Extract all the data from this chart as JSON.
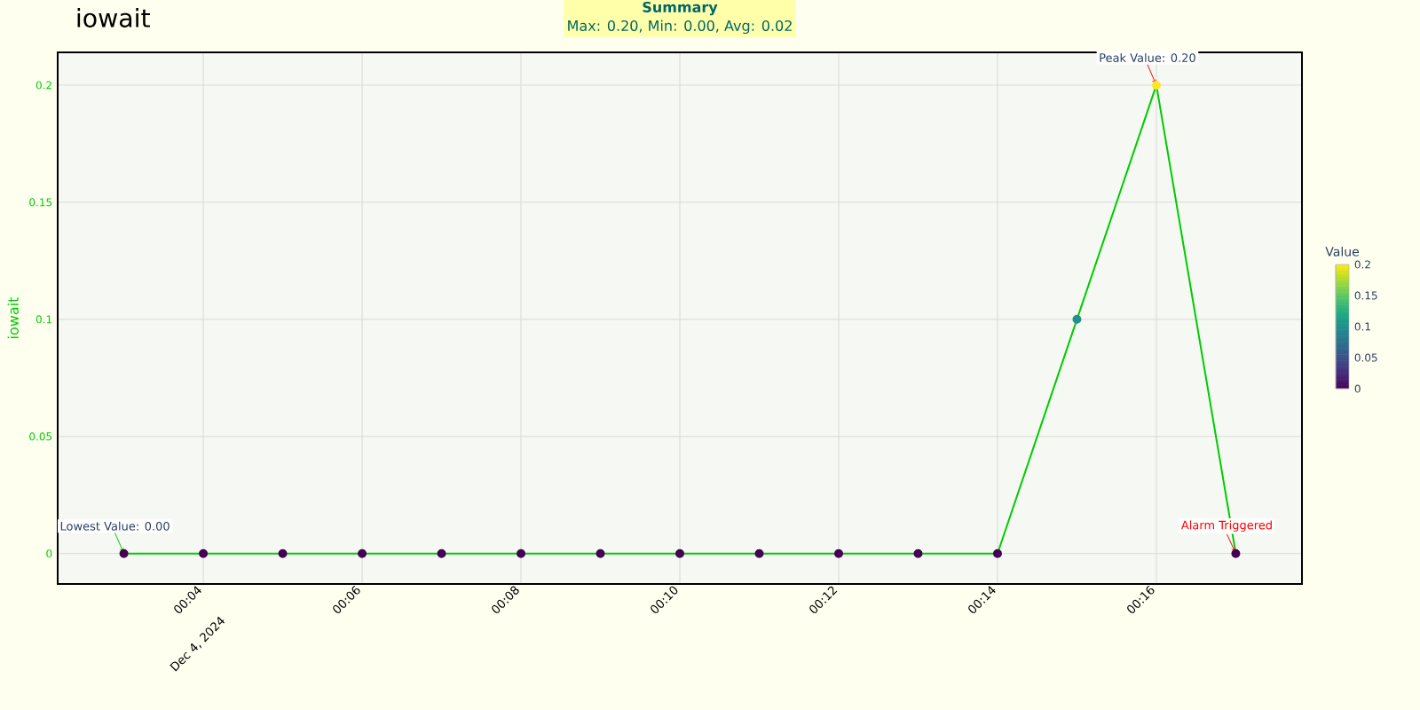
{
  "chart_data": {
    "type": "line",
    "title": "iowait",
    "ylabel": "iowait",
    "clabel": "Value",
    "x": [
      "2024-12-04T00:03",
      "2024-12-04T00:04",
      "2024-12-04T00:05",
      "2024-12-04T00:06",
      "2024-12-04T00:07",
      "2024-12-04T00:08",
      "2024-12-04T00:09",
      "2024-12-04T00:10",
      "2024-12-04T00:11",
      "2024-12-04T00:12",
      "2024-12-04T00:13",
      "2024-12-04T00:14",
      "2024-12-04T00:15",
      "2024-12-04T00:16",
      "2024-12-04T00:17"
    ],
    "series": [
      {
        "color": "#00cc00",
        "values": [
          0,
          0,
          0,
          0,
          0,
          0,
          0,
          0,
          0,
          0,
          0,
          0,
          0.1,
          0.2,
          0
        ]
      }
    ],
    "xlim": [
      "2024-12-04T00:02:10",
      "2024-12-04T00:17:50"
    ],
    "xticks": [
      {
        "value": "2024-12-04T00:04",
        "label": "00:04"
      },
      {
        "value": "2024-12-04T00:06",
        "label": "00:06"
      },
      {
        "value": "2024-12-04T00:08",
        "label": "00:08"
      },
      {
        "value": "2024-12-04T00:10",
        "label": "00:10"
      },
      {
        "value": "2024-12-04T00:12",
        "label": "00:12"
      },
      {
        "value": "2024-12-04T00:14",
        "label": "00:14"
      },
      {
        "value": "2024-12-04T00:16",
        "label": "00:16"
      }
    ],
    "ylim": [
      -0.013,
      0.214
    ],
    "yticks": [
      0,
      0.05,
      0.1,
      0.15,
      0.2
    ],
    "clim": [
      0,
      0.2
    ],
    "cticks": [
      0,
      0.05,
      0.1,
      0.15,
      0.2
    ],
    "grid": true,
    "marker": "circle",
    "line_style": "solid",
    "annotations": [
      {
        "text": "Lowest Value: 0.00",
        "x": "2024-12-04T00:03",
        "y": 0
      },
      {
        "text": "Peak Value: 0.20",
        "x": "2024-12-04T00:16",
        "y": 0.2
      },
      {
        "text": "Alarm Triggered",
        "x": "2024-12-04T00:17",
        "y": 0
      },
      "Summary",
      "Max: 0.20, Min: 0.00, Avg: 0.02",
      "Dec 4, 2024"
    ]
  }
}
